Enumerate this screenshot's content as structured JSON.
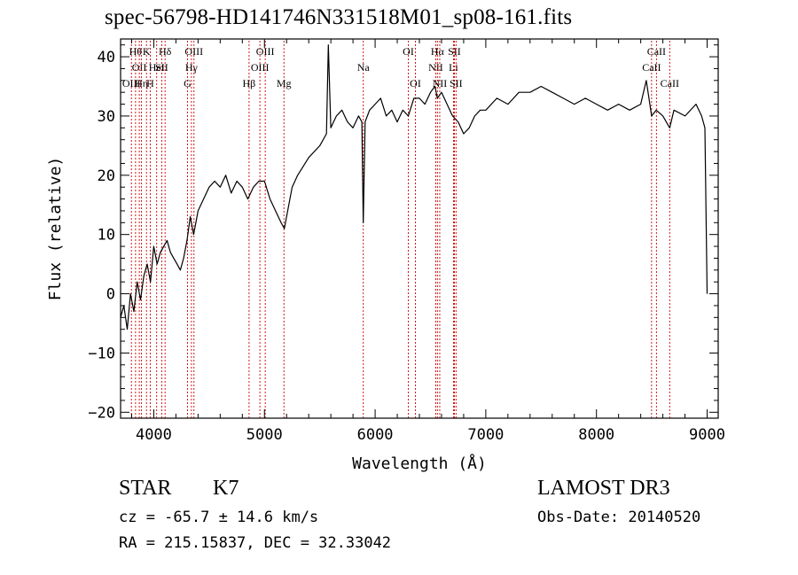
{
  "chart_data": {
    "type": "line",
    "title": "spec-56798-HD141746N331518M01_sp08-161.fits",
    "xlabel": "Wavelength (Å)",
    "ylabel": "Flux (relative)",
    "xlim": [
      3700,
      9100
    ],
    "ylim": [
      -21,
      43
    ],
    "xticks": [
      4000,
      5000,
      6000,
      7000,
      8000,
      9000
    ],
    "yticks": [
      -20,
      -10,
      0,
      10,
      20,
      30,
      40
    ],
    "grid": false,
    "line_color": "#000000",
    "marker_line_color": "#cc0000",
    "series": [
      {
        "x": [
          3700,
          3730,
          3760,
          3790,
          3820,
          3850,
          3880,
          3910,
          3940,
          3970,
          4000,
          4030,
          4060,
          4090,
          4120,
          4150,
          4180,
          4210,
          4240,
          4270,
          4300,
          4330,
          4360,
          4400,
          4450,
          4500,
          4550,
          4600,
          4650,
          4700,
          4750,
          4800,
          4850,
          4900,
          4950,
          5000,
          5050,
          5100,
          5150,
          5180,
          5200,
          5250,
          5300,
          5400,
          5500,
          5560,
          5577,
          5600,
          5650,
          5700,
          5750,
          5800,
          5850,
          5880,
          5893,
          5910,
          5950,
          6000,
          6050,
          6100,
          6150,
          6200,
          6250,
          6300,
          6350,
          6400,
          6450,
          6500,
          6540,
          6563,
          6600,
          6650,
          6700,
          6750,
          6800,
          6850,
          6900,
          6950,
          7000,
          7100,
          7200,
          7300,
          7400,
          7500,
          7600,
          7700,
          7800,
          7900,
          8000,
          8100,
          8200,
          8300,
          8400,
          8450,
          8498,
          8540,
          8600,
          8662,
          8700,
          8800,
          8900,
          8950,
          8980,
          9000
        ],
        "y": [
          -4,
          -2,
          -6,
          0,
          -3,
          2,
          -1,
          3,
          5,
          2,
          8,
          5,
          7,
          8,
          9,
          7,
          6,
          5,
          4,
          6,
          9,
          13,
          10,
          14,
          16,
          18,
          19,
          18,
          20,
          17,
          19,
          18,
          16,
          18,
          19,
          19,
          16,
          14,
          12,
          11,
          13,
          18,
          20,
          23,
          25,
          27,
          42,
          28,
          30,
          31,
          29,
          28,
          30,
          29,
          12,
          29,
          31,
          32,
          33,
          30,
          31,
          29,
          31,
          30,
          33,
          33,
          32,
          34,
          35,
          33,
          34,
          32,
          30,
          29,
          27,
          28,
          30,
          31,
          31,
          33,
          32,
          34,
          34,
          35,
          34,
          33,
          32,
          33,
          32,
          31,
          32,
          31,
          32,
          36,
          30,
          31,
          30,
          28,
          31,
          30,
          32,
          30,
          28,
          0
        ]
      }
    ],
    "line_markers": [
      {
        "x": 3798,
        "label": "OIII",
        "row": 2
      },
      {
        "x": 3835,
        "label": "Hθ",
        "row": 0
      },
      {
        "x": 3869,
        "label": "OII",
        "row": 1
      },
      {
        "x": 3889,
        "label": "Hη",
        "row": 2
      },
      {
        "x": 3934,
        "label": "K",
        "row": 0
      },
      {
        "x": 3968,
        "label": "H",
        "row": 2
      },
      {
        "x": 4026,
        "label": "HeI",
        "row": 1
      },
      {
        "x": 4072,
        "label": "SII",
        "row": 1
      },
      {
        "x": 4102,
        "label": "Hδ",
        "row": 0
      },
      {
        "x": 4305,
        "label": "G",
        "row": 2
      },
      {
        "x": 4340,
        "label": "Hγ",
        "row": 1
      },
      {
        "x": 4363,
        "label": "OIII",
        "row": 0
      },
      {
        "x": 4861,
        "label": "Hβ",
        "row": 2
      },
      {
        "x": 4959,
        "label": "OIII",
        "row": 1
      },
      {
        "x": 5007,
        "label": "OIII",
        "row": 0
      },
      {
        "x": 5176,
        "label": "Mg",
        "row": 2
      },
      {
        "x": 5893,
        "label": "Na",
        "row": 1
      },
      {
        "x": 6300,
        "label": "OI",
        "row": 0
      },
      {
        "x": 6364,
        "label": "OI",
        "row": 2
      },
      {
        "x": 6548,
        "label": "NII",
        "row": 1
      },
      {
        "x": 6563,
        "label": "Hα",
        "row": 0
      },
      {
        "x": 6584,
        "label": "NII",
        "row": 2
      },
      {
        "x": 6708,
        "label": "Li",
        "row": 1
      },
      {
        "x": 6716,
        "label": "SII",
        "row": 0
      },
      {
        "x": 6731,
        "label": "SII",
        "row": 2
      },
      {
        "x": 8498,
        "label": "CaII",
        "row": 1
      },
      {
        "x": 8542,
        "label": "CaII",
        "row": 0
      },
      {
        "x": 8662,
        "label": "CaII",
        "row": 2
      }
    ]
  },
  "info": {
    "object_class": "STAR",
    "subclass": "K7",
    "survey": "LAMOST DR3",
    "redshift": "cz = -65.7 ± 14.6 km/s",
    "obs_date": "Obs-Date: 20140520",
    "coords": "RA = 215.15837, DEC =  32.33042"
  }
}
